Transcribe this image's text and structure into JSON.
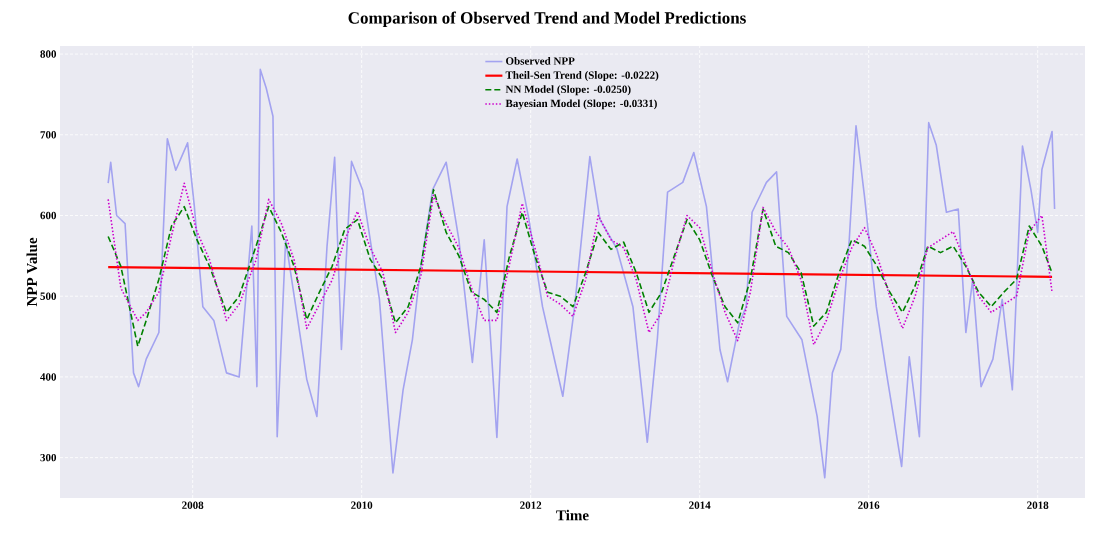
{
  "chart_data": {
    "type": "line",
    "title": "Comparison of Observed Trend and Model Predictions",
    "xlabel": "Time",
    "ylabel": "NPP Value",
    "xlim": [
      2006.43,
      2018.56
    ],
    "ylim": [
      250,
      810
    ],
    "xticks": [
      2008,
      2010,
      2012,
      2014,
      2016,
      2018
    ],
    "yticks": [
      300,
      400,
      500,
      600,
      700,
      800
    ],
    "grid": true,
    "legend": "top",
    "series": [
      {
        "name": "Observed NPP",
        "color": "#a3a3f0",
        "line_style": "solid",
        "x": [
          2007.0,
          2007.03,
          2007.1,
          2007.2,
          2007.3,
          2007.36,
          2007.45,
          2007.6,
          2007.7,
          2007.8,
          2007.94,
          2008.02,
          2008.12,
          2008.25,
          2008.4,
          2008.55,
          2008.7,
          2008.76,
          2008.8,
          2008.87,
          2008.95,
          2009.0,
          2009.1,
          2009.22,
          2009.35,
          2009.47,
          2009.59,
          2009.68,
          2009.76,
          2009.88,
          2010.01,
          2010.21,
          2010.37,
          2010.49,
          2010.6,
          2010.69,
          2010.84,
          2011.0,
          2011.15,
          2011.31,
          2011.45,
          2011.6,
          2011.72,
          2011.84,
          2011.98,
          2012.14,
          2012.38,
          2012.52,
          2012.7,
          2012.82,
          2013.02,
          2013.21,
          2013.38,
          2013.5,
          2013.62,
          2013.8,
          2013.93,
          2014.08,
          2014.24,
          2014.33,
          2014.47,
          2014.55,
          2014.62,
          2014.79,
          2014.91,
          2015.03,
          2015.21,
          2015.39,
          2015.48,
          2015.57,
          2015.67,
          2015.77,
          2015.85,
          2015.95,
          2016.09,
          2016.21,
          2016.39,
          2016.48,
          2016.6,
          2016.71,
          2016.8,
          2016.92,
          2017.06,
          2017.15,
          2017.23,
          2017.33,
          2017.47,
          2017.58,
          2017.7,
          2017.82,
          2017.92,
          2018.0,
          2018.05,
          2018.17,
          2018.2
        ],
        "values": [
          640,
          666,
          600,
          590,
          405,
          388,
          422,
          455,
          695,
          656,
          690,
          611,
          487,
          470,
          405,
          400,
          587,
          388,
          781,
          758,
          723,
          326,
          570,
          487,
          397,
          351,
          562,
          672,
          434,
          667,
          632,
          496,
          281,
          384,
          446,
          530,
          632,
          666,
          570,
          418,
          570,
          325,
          611,
          670,
          595,
          487,
          376,
          487,
          673,
          595,
          559,
          487,
          319,
          448,
          629,
          641,
          678,
          611,
          434,
          394,
          467,
          487,
          604,
          641,
          654,
          475,
          446,
          351,
          275,
          405,
          434,
          570,
          711,
          624,
          487,
          405,
          289,
          425,
          326,
          715,
          687,
          604,
          608,
          455,
          520,
          388,
          422,
          496,
          384,
          686,
          632,
          579,
          657,
          704,
          608
        ]
      },
      {
        "name": "Theil-Sen Trend (Slope: -0.0222)",
        "color": "#ff0000",
        "line_style": "solid",
        "x": [
          2007.0,
          2018.17
        ],
        "values": [
          536,
          524
        ]
      },
      {
        "name": "NN Model (Slope: -0.0250)",
        "color": "#008000",
        "line_style": "dashed",
        "x": [
          2007.0,
          2007.15,
          2007.35,
          2007.45,
          2007.6,
          2007.75,
          2007.9,
          2008.05,
          2008.2,
          2008.4,
          2008.55,
          2008.75,
          2008.9,
          2009.05,
          2009.2,
          2009.35,
          2009.5,
          2009.65,
          2009.8,
          2009.95,
          2010.1,
          2010.25,
          2010.4,
          2010.55,
          2010.7,
          2010.85,
          2011.0,
          2011.15,
          2011.3,
          2011.45,
          2011.6,
          2011.75,
          2011.9,
          2012.05,
          2012.2,
          2012.35,
          2012.5,
          2012.65,
          2012.8,
          2012.95,
          2013.1,
          2013.25,
          2013.4,
          2013.55,
          2013.7,
          2013.85,
          2014.0,
          2014.15,
          2014.3,
          2014.45,
          2014.6,
          2014.75,
          2014.9,
          2015.05,
          2015.2,
          2015.35,
          2015.5,
          2015.65,
          2015.8,
          2015.95,
          2016.1,
          2016.25,
          2016.4,
          2016.55,
          2016.7,
          2016.85,
          2017.0,
          2017.15,
          2017.3,
          2017.45,
          2017.6,
          2017.75,
          2017.9,
          2018.05,
          2018.17
        ],
        "values": [
          574,
          537,
          438,
          470,
          521,
          587,
          611,
          570,
          537,
          480,
          500,
          562,
          611,
          579,
          537,
          471,
          505,
          537,
          583,
          595,
          546,
          521,
          467,
          487,
          537,
          632,
          579,
          550,
          505,
          496,
          480,
          550,
          604,
          550,
          505,
          500,
          487,
          529,
          579,
          558,
          567,
          529,
          480,
          505,
          550,
          595,
          570,
          525,
          487,
          467,
          521,
          608,
          562,
          554,
          529,
          463,
          480,
          529,
          570,
          562,
          537,
          505,
          480,
          513,
          562,
          554,
          562,
          537,
          505,
          487,
          505,
          521,
          587,
          562,
          529
        ]
      },
      {
        "name": "Bayesian Model (Slope: -0.0331)",
        "color": "#cc00cc",
        "line_style": "dotted",
        "x": [
          2007.0,
          2007.15,
          2007.35,
          2007.45,
          2007.6,
          2007.75,
          2007.9,
          2008.05,
          2008.2,
          2008.4,
          2008.55,
          2008.75,
          2008.9,
          2009.05,
          2009.2,
          2009.35,
          2009.5,
          2009.65,
          2009.8,
          2009.95,
          2010.1,
          2010.25,
          2010.4,
          2010.55,
          2010.7,
          2010.85,
          2011.0,
          2011.15,
          2011.3,
          2011.45,
          2011.6,
          2011.75,
          2011.9,
          2012.05,
          2012.2,
          2012.35,
          2012.5,
          2012.65,
          2012.8,
          2012.95,
          2013.1,
          2013.25,
          2013.4,
          2013.55,
          2013.7,
          2013.85,
          2014.0,
          2014.15,
          2014.3,
          2014.45,
          2014.6,
          2014.75,
          2014.9,
          2015.05,
          2015.2,
          2015.35,
          2015.5,
          2015.65,
          2015.8,
          2015.95,
          2016.1,
          2016.25,
          2016.4,
          2016.55,
          2016.7,
          2016.85,
          2017.0,
          2017.15,
          2017.3,
          2017.45,
          2017.6,
          2017.75,
          2017.9,
          2018.05,
          2018.17
        ],
        "values": [
          620,
          510,
          470,
          480,
          505,
          575,
          640,
          580,
          545,
          470,
          490,
          545,
          620,
          590,
          545,
          460,
          490,
          520,
          570,
          605,
          560,
          530,
          455,
          480,
          525,
          625,
          590,
          560,
          510,
          470,
          470,
          540,
          615,
          560,
          500,
          490,
          475,
          520,
          600,
          570,
          560,
          520,
          455,
          480,
          545,
          600,
          585,
          530,
          480,
          445,
          505,
          610,
          580,
          560,
          520,
          440,
          470,
          520,
          560,
          585,
          550,
          500,
          460,
          500,
          560,
          570,
          580,
          540,
          500,
          480,
          490,
          500,
          580,
          600,
          505
        ]
      }
    ]
  }
}
